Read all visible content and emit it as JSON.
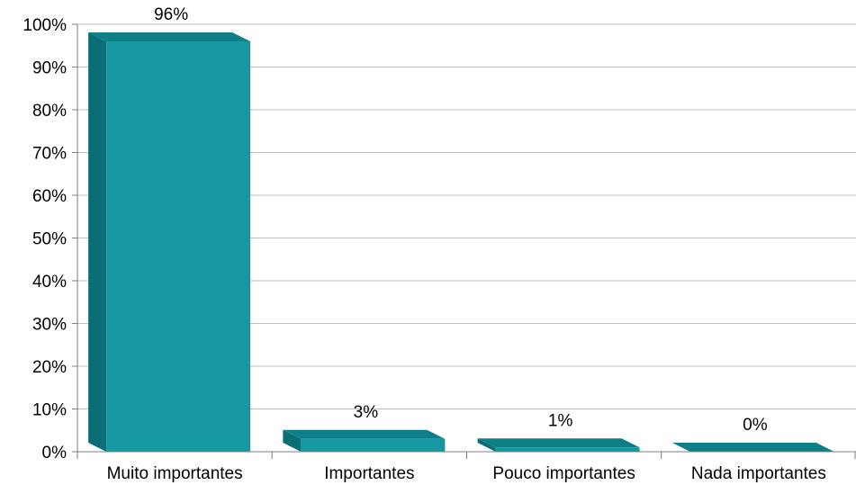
{
  "chart_data": {
    "type": "bar",
    "title": "",
    "xlabel": "",
    "ylabel": "",
    "categories": [
      "Muito importantes",
      "Importantes",
      "Pouco importantes",
      "Nada importantes"
    ],
    "values": [
      96,
      3,
      1,
      0
    ],
    "data_labels": [
      "96%",
      "3%",
      "1%",
      "0%"
    ],
    "y_ticks": [
      "0%",
      "10%",
      "20%",
      "30%",
      "40%",
      "50%",
      "60%",
      "70%",
      "80%",
      "90%",
      "100%"
    ],
    "ylim": [
      0,
      100
    ],
    "grid": true,
    "legend": "none",
    "colors": {
      "front": "#1698A3",
      "side": "#0B6E75",
      "top": "#0E7F87",
      "grid": "#BFBFBF",
      "axis": "#7F7F7F"
    }
  }
}
